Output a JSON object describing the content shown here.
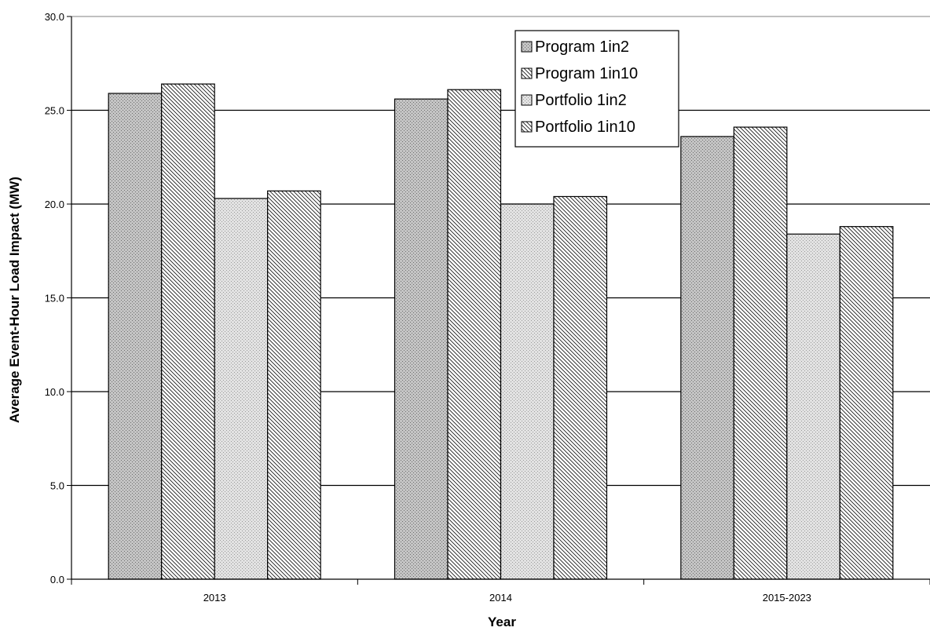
{
  "chart_data": {
    "type": "bar",
    "title": "",
    "xlabel": "Year",
    "ylabel": "Average Event-Hour Load Impact (MW)",
    "categories": [
      "2013",
      "2014",
      "2015-2023"
    ],
    "series": [
      {
        "name": "Program 1in2",
        "values": [
          25.9,
          25.6,
          23.6
        ]
      },
      {
        "name": "Program 1in10",
        "values": [
          26.4,
          26.1,
          24.1
        ]
      },
      {
        "name": "Portfolio 1in2",
        "values": [
          20.3,
          20.0,
          18.4
        ]
      },
      {
        "name": "Portfolio 1in10",
        "values": [
          20.7,
          20.4,
          18.8
        ]
      }
    ],
    "ylim": [
      0,
      30
    ],
    "yticks": [
      "0.0",
      "5.0",
      "10.0",
      "15.0",
      "20.0",
      "25.0",
      "30.0"
    ],
    "grid": true,
    "legend_position": "top-right"
  }
}
